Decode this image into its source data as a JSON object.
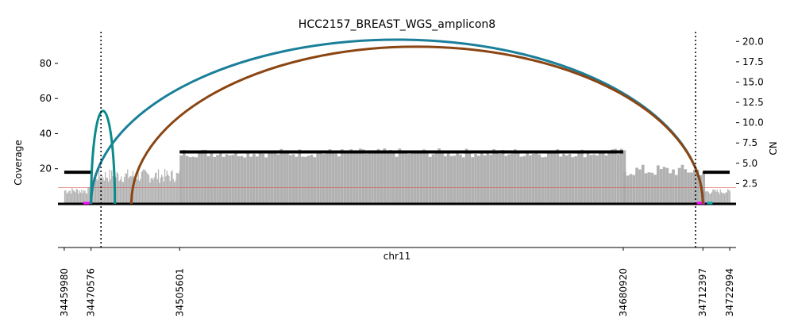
{
  "chart_data": {
    "type": "coverage-breakpoint",
    "title": "HCC2157_BREAST_WGS_amplicon8",
    "xlabel": "chr11",
    "ylabel_left": "Coverage",
    "ylabel_right": "CN",
    "xlim": [
      34457500,
      34725500
    ],
    "ylim_left": [
      0,
      98
    ],
    "ylim_right": [
      0,
      21.2
    ],
    "left_ticks": [
      20,
      40,
      60,
      80
    ],
    "right_ticks": [
      2.5,
      5.0,
      7.5,
      10.0,
      12.5,
      15.0,
      17.5,
      20.0
    ],
    "right_tick_labels": [
      "2.5",
      "5.0",
      "7.5",
      "10.0",
      "12.5",
      "15.0",
      "17.5",
      "20.0"
    ],
    "x_ticks": [
      34459980,
      34470576,
      34505601,
      34680920,
      34712397,
      34722994
    ],
    "x_tick_labels": [
      "34459980",
      "34470576",
      "34505601",
      "34680920",
      "34712397",
      "34722994"
    ],
    "dotted_vlines": [
      34474500,
      34709500
    ],
    "reference_cn": 2.0,
    "coverage_segments": [
      {
        "start": 34459980,
        "end": 34470576,
        "base": 7.5,
        "jitter": 2.0,
        "width": 420
      },
      {
        "start": 34470576,
        "end": 34505601,
        "base": 16.0,
        "jitter": 4.0,
        "width": 420
      },
      {
        "start": 34505601,
        "end": 34680920,
        "base": 29.0,
        "jitter": 2.6,
        "width": 1200
      },
      {
        "start": 34680920,
        "end": 34712397,
        "base": 19.0,
        "jitter": 3.5,
        "width": 1200
      },
      {
        "start": 34712397,
        "end": 34722994,
        "base": 7.0,
        "jitter": 1.5,
        "width": 420
      }
    ],
    "cn_segments": [
      {
        "start": 34459980,
        "end": 34470576,
        "cn": 3.9
      },
      {
        "start": 34505601,
        "end": 34680920,
        "cn": 6.4
      },
      {
        "start": 34712397,
        "end": 34722994,
        "cn": 3.9
      }
    ],
    "breakpoints": [
      {
        "x1": 34470576,
        "x2": 34712397,
        "height": 93.5,
        "color": "#1a7f99"
      },
      {
        "x1": 34470576,
        "x2": 34480000,
        "height": 53,
        "color": "#0b8a8a"
      },
      {
        "x1": 34486500,
        "x2": 34712397,
        "height": 89.5,
        "color": "#8b4513"
      }
    ],
    "genes": [
      {
        "start": 34467500,
        "end": 34470000,
        "color": "#ff00ff"
      },
      {
        "start": 34710000,
        "end": 34713200,
        "color": "#ff00ff"
      },
      {
        "start": 34714000,
        "end": 34716200,
        "color": "#00aaaa"
      }
    ]
  }
}
